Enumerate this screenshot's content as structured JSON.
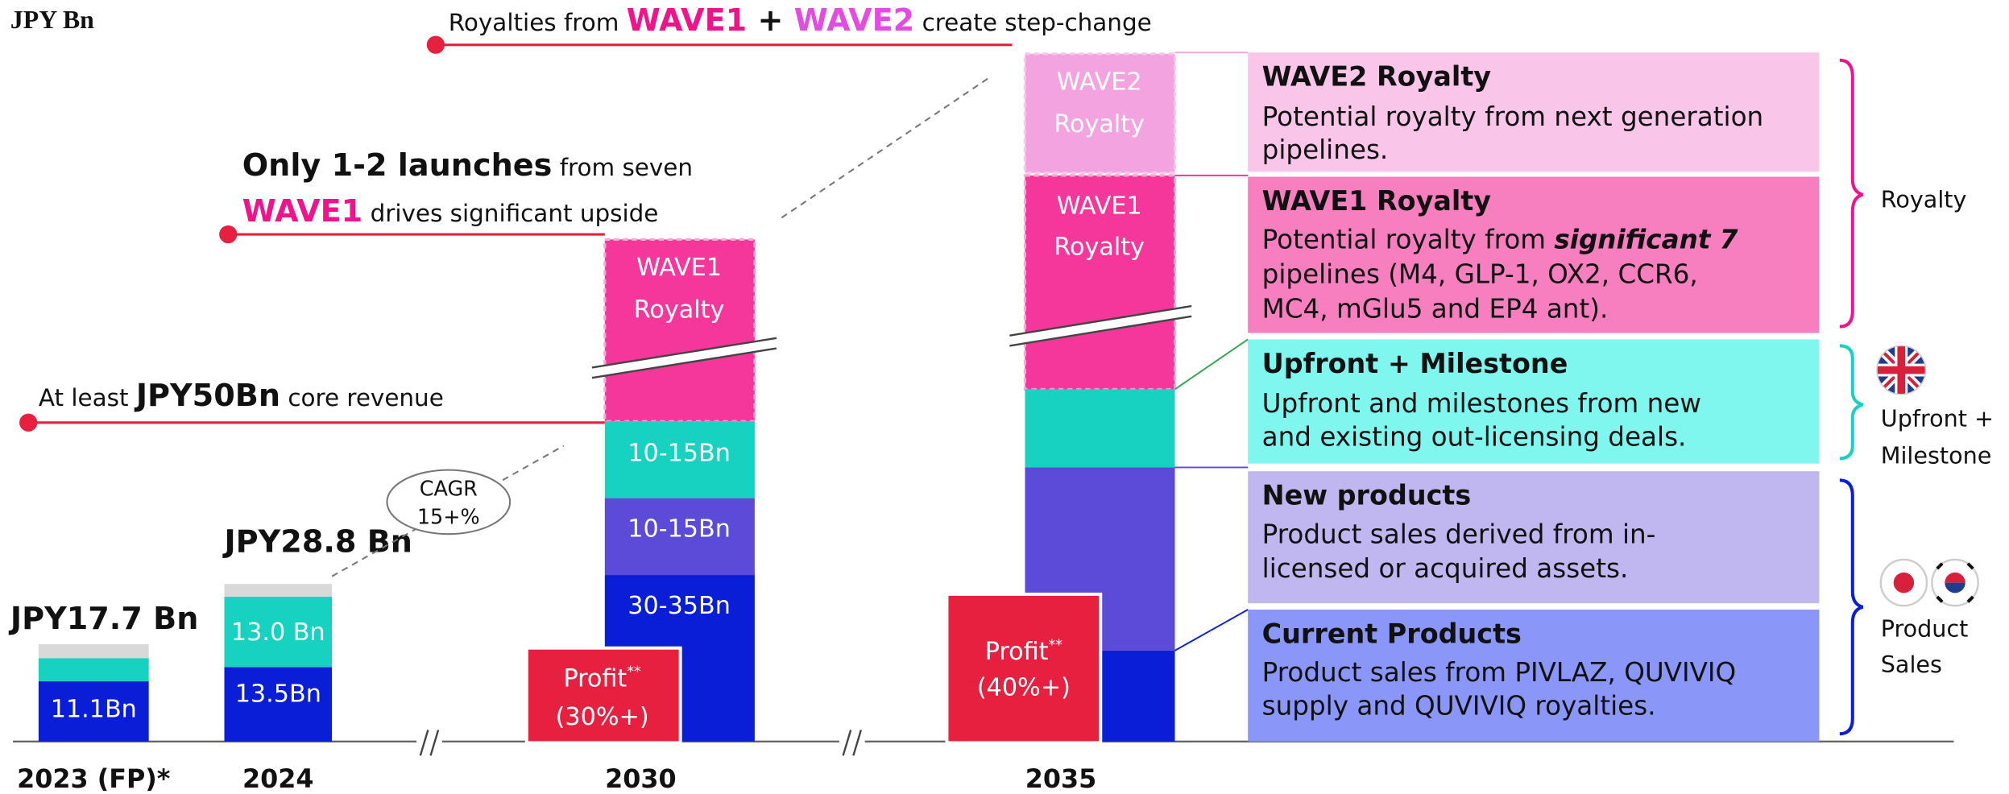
{
  "unit_label": "JPY Bn",
  "bars": [
    {
      "year": "2023 (FP)*",
      "total": "JPY17.7 Bn",
      "segments": [
        "11.1Bn"
      ]
    },
    {
      "year": "2024",
      "total": "JPY28.8 Bn",
      "segments": [
        "13.5Bn",
        "13.0 Bn"
      ]
    },
    {
      "year": "2030",
      "segments": [
        "30-35Bn",
        "10-15Bn",
        "10-15Bn"
      ],
      "royalty": [
        "WAVE1",
        "Royalty"
      ],
      "profit": [
        "Profit",
        "**",
        "(30%+)"
      ]
    },
    {
      "year": "2035",
      "royalty1": [
        "WAVE1",
        "Royalty"
      ],
      "royalty2": [
        "WAVE2",
        "Royalty"
      ],
      "profit": [
        "Profit",
        "**",
        "(40%+)"
      ]
    }
  ],
  "cagr": [
    "CAGR",
    "15+%"
  ],
  "callouts": {
    "core": [
      "At least ",
      "JPY50Bn",
      " core revenue"
    ],
    "launches": [
      "Only 1-2 launches",
      " from seven"
    ],
    "wave1": [
      "WAVE1",
      " drives significant upside"
    ],
    "step": [
      "Royalties from ",
      "WAVE1",
      " + ",
      "WAVE2",
      " create step-change"
    ]
  },
  "legend": [
    {
      "title": "WAVE2 Royalty",
      "text": [
        "Potential royalty from next generation",
        "pipelines."
      ]
    },
    {
      "title": "WAVE1 Royalty",
      "text": [
        "Potential royalty from ",
        "significant 7",
        "pipelines (M4, GLP-1, OX2, CCR6,",
        "MC4, mGlu5 and EP4 ant)."
      ]
    },
    {
      "title": "Upfront + Milestone",
      "text": [
        "Upfront and milestones from new",
        "and existing out-licensing deals."
      ]
    },
    {
      "title": "New products",
      "text": [
        "Product sales derived from in-",
        "licensed or acquired assets."
      ]
    },
    {
      "title": "Current Products",
      "text": [
        "Product sales from PIVLAZ, QUVIVIQ",
        "supply and QUVIVIQ royalties."
      ]
    }
  ],
  "groups": [
    [
      "Royalty"
    ],
    [
      "Upfront +",
      "Milestone"
    ],
    [
      "Product",
      "Sales"
    ]
  ]
}
